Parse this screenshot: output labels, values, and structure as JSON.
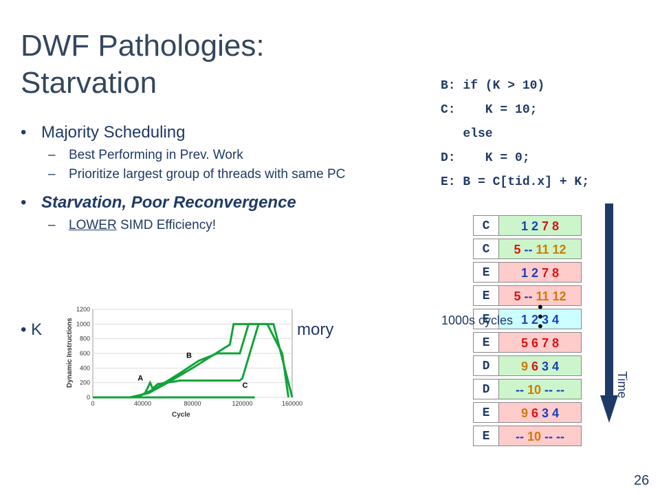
{
  "title_line1": "DWF Pathologies:",
  "title_line2": "Starvation",
  "bullets": {
    "b1": "Majority Scheduling",
    "b1_sub1": "Best Performing in Prev. Work",
    "b1_sub2": "Prioritize largest group of threads with same PC",
    "b2": "Starvation, Poor Reconvergence",
    "b2_sub1_pre": "LOWER",
    "b2_sub1_post": " SIMD Efficiency!",
    "b3_left": "•  K",
    "b3_right": "mory"
  },
  "code": [
    "B: if (K > 10)",
    "C:    K = 10;",
    "   else",
    "D:    K = 0;",
    "E: B = C[tid.x] + K;"
  ],
  "rows": [
    {
      "pc": "C",
      "bg": "green",
      "vals": [
        [
          "1",
          "blue"
        ],
        [
          "2",
          "blue"
        ],
        [
          "7",
          "red"
        ],
        [
          "8",
          "red"
        ]
      ]
    },
    {
      "pc": "C",
      "bg": "green",
      "vals": [
        [
          "5",
          "red"
        ],
        [
          "--",
          "blue"
        ],
        [
          "11",
          "orange"
        ],
        [
          "12",
          "orange"
        ]
      ]
    },
    {
      "pc": "E",
      "bg": "pink",
      "vals": [
        [
          "1",
          "blue"
        ],
        [
          "2",
          "blue"
        ],
        [
          "7",
          "red"
        ],
        [
          "8",
          "red"
        ]
      ]
    },
    {
      "pc": "E",
      "bg": "pink",
      "vals": [
        [
          "5",
          "red"
        ],
        [
          "--",
          "blue"
        ],
        [
          "11",
          "orange"
        ],
        [
          "12",
          "orange"
        ]
      ]
    },
    {
      "pc": "E",
      "bg": "cyan",
      "vals": [
        [
          "1",
          "blue"
        ],
        [
          "2",
          "blue"
        ],
        [
          "3",
          "blue"
        ],
        [
          "4",
          "blue"
        ]
      ]
    },
    {
      "pc": "E",
      "bg": "pink",
      "vals": [
        [
          "5",
          "red"
        ],
        [
          "6",
          "red"
        ],
        [
          "7",
          "red"
        ],
        [
          "8",
          "red"
        ]
      ]
    },
    {
      "pc": "D",
      "bg": "green",
      "vals": [
        [
          "9",
          "orange"
        ],
        [
          "6",
          "red"
        ],
        [
          "3",
          "blue"
        ],
        [
          "4",
          "blue"
        ]
      ]
    },
    {
      "pc": "D",
      "bg": "green",
      "vals": [
        [
          "--",
          "blue"
        ],
        [
          "10",
          "orange"
        ],
        [
          "--",
          "blue"
        ],
        [
          "--",
          "blue"
        ]
      ]
    },
    {
      "pc": "E",
      "bg": "pink",
      "vals": [
        [
          "9",
          "orange"
        ],
        [
          "6",
          "red"
        ],
        [
          "3",
          "blue"
        ],
        [
          "4",
          "blue"
        ]
      ]
    },
    {
      "pc": "E",
      "bg": "pink",
      "vals": [
        [
          "--",
          "blue"
        ],
        [
          "10",
          "orange"
        ],
        [
          "--",
          "blue"
        ],
        [
          "--",
          "blue"
        ]
      ]
    }
  ],
  "cycles_label": "1000s cycles",
  "time_label": "Time",
  "page_number": "26",
  "chart_data": {
    "type": "line",
    "xlabel": "Cycle",
    "ylabel": "Dynamic Instructions",
    "ylim": [
      0,
      1200
    ],
    "xlim": [
      0,
      160000
    ],
    "xticks": [
      "0",
      "40000",
      "80000",
      "120000",
      "160000"
    ],
    "yticks": [
      "0",
      "200",
      "400",
      "600",
      "800",
      "1000",
      "1200"
    ],
    "annotations": [
      "A",
      "B",
      "C"
    ],
    "color": "#11a33a"
  }
}
